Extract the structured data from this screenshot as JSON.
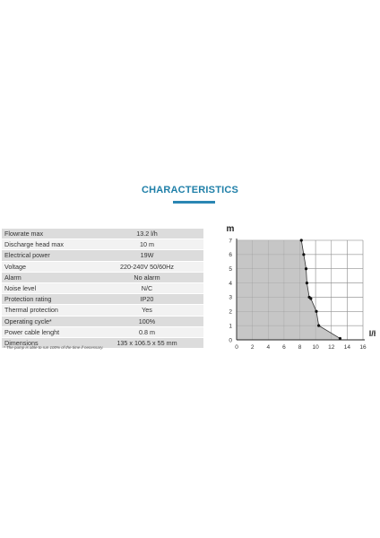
{
  "title": "CHARACTERISTICS",
  "specs": [
    {
      "label": "Flowrate max",
      "value": "13.2 l/h"
    },
    {
      "label": "Discharge head max",
      "value": "10 m"
    },
    {
      "label": "Electrical power",
      "value": "19W"
    },
    {
      "label": "Voltage",
      "value": "220-240V  50/60Hz"
    },
    {
      "label": "Alarm",
      "value": "No alarm"
    },
    {
      "label": "Noise level",
      "value": "N/C"
    },
    {
      "label": "Protection rating",
      "value": "IP20"
    },
    {
      "label": "Thermal protection",
      "value": "Yes"
    },
    {
      "label": "Operating cycle*",
      "value": "100%"
    },
    {
      "label": "Power cable lenght",
      "value": "0.8 m"
    },
    {
      "label": "Dimensions",
      "value": "135 x 106.5 x 55 mm"
    }
  ],
  "footnote": "* The pump is able to run 100% of the time if necessary.",
  "chart_data": {
    "type": "area",
    "xlabel": "l/h",
    "ylabel": "m",
    "xlim": [
      0,
      16
    ],
    "ylim": [
      0,
      7
    ],
    "x_ticks": [
      0,
      2,
      4,
      6,
      8,
      10,
      12,
      14,
      16
    ],
    "y_ticks": [
      0,
      1,
      2,
      3,
      4,
      5,
      6,
      7
    ],
    "grid": true,
    "series": [
      {
        "x": [
          8.2,
          8.5,
          8.8,
          8.9,
          9.2,
          9.4,
          10.1,
          10.4,
          13.1
        ],
        "y": [
          7,
          6,
          5,
          4,
          3,
          2.9,
          2,
          1,
          0.1
        ]
      }
    ],
    "colors": {
      "fill": "#c6c6c6",
      "line": "#333333",
      "point": "#111111"
    }
  }
}
